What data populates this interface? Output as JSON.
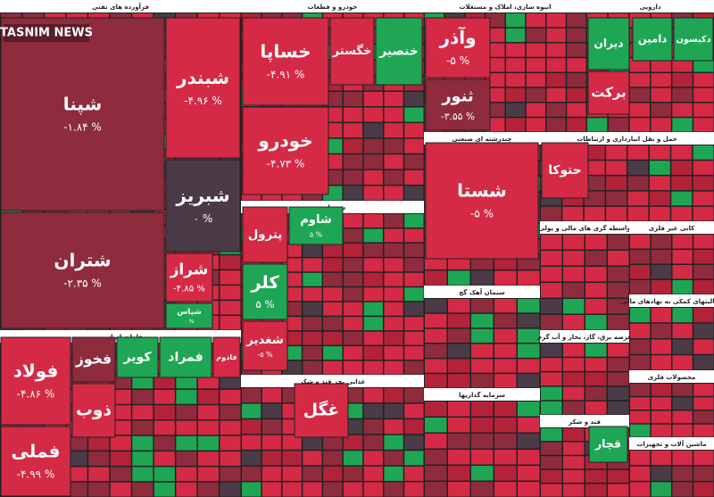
{
  "header": {
    "logo": "TASNIM NEWS",
    "title": "نقشه بازار"
  },
  "sectors": [
    {
      "title": "فرآورده های نفتی",
      "tiles": [
        {
          "name": "شپنا",
          "change": "-۱.۸۴ %"
        },
        {
          "name": "شتران",
          "change": "-۲.۳۵ %"
        },
        {
          "name": "شبندر",
          "change": "-۴.۹۶ %"
        },
        {
          "name": "شبریز",
          "change": "۰ %"
        },
        {
          "name": "شراز",
          "change": "-۴.۸۵ %"
        },
        {
          "name": "شپاس",
          "change": "۰ %"
        }
      ]
    },
    {
      "title": "خودرو و قطعات",
      "tiles": [
        {
          "name": "خساپا",
          "change": "-۴.۹۱ %"
        },
        {
          "name": "خودرو",
          "change": "-۴.۷۳ %"
        },
        {
          "name": "خگستر"
        },
        {
          "name": "خنصیر"
        }
      ]
    },
    {
      "title": "انبوه سازی، املاک و مستغلات",
      "tiles": [
        {
          "name": "وآذر",
          "change": "-۵ %"
        },
        {
          "name": "ثنور",
          "change": "-۳.۵۵ %"
        }
      ]
    },
    {
      "title": "دارویی",
      "tiles": [
        {
          "name": "دیران"
        },
        {
          "name": "برکت"
        },
        {
          "name": "دامین"
        },
        {
          "name": "دکیسون"
        }
      ]
    },
    {
      "title": "چندرشته ای صنعتی",
      "tiles": [
        {
          "name": "شستا",
          "change": "-۵ %"
        }
      ]
    },
    {
      "title": "حمل و نقل انبارداری و ارتباطات",
      "tiles": [
        {
          "name": "حتوکا"
        }
      ]
    },
    {
      "title": "واسطه گری های مالی و پولی",
      "tiles": []
    },
    {
      "title": "کانی غیر فلزی",
      "tiles": []
    },
    {
      "title": "شیمیایی",
      "tiles": [
        {
          "name": "پترول"
        },
        {
          "name": "شاوم",
          "change": "۵ %"
        },
        {
          "name": "کلر",
          "change": "۵ %"
        },
        {
          "name": "شغدیر",
          "change": "-۵ %"
        }
      ]
    },
    {
      "title": "فلزات اساسی",
      "tiles": [
        {
          "name": "فولاد",
          "change": "-۴.۸۶ %"
        },
        {
          "name": "فملی",
          "change": "-۴.۹۹ %"
        },
        {
          "name": "فخوز"
        },
        {
          "name": "کویر"
        },
        {
          "name": "فمراد"
        },
        {
          "name": "فاذوم"
        },
        {
          "name": "ذوب"
        }
      ]
    },
    {
      "title": "غذایی بجز قند و شکر",
      "tiles": [
        {
          "name": "غگل"
        }
      ]
    },
    {
      "title": "سیمان آهک گچ",
      "tiles": []
    },
    {
      "title": "سرمایه گذاریها",
      "tiles": []
    },
    {
      "title": "عرضه برق، گاز، بخار و آب گرم",
      "tiles": []
    },
    {
      "title": "قند و شکر",
      "tiles": [
        {
          "name": "قچار"
        }
      ]
    },
    {
      "title": "فعالیتهای کمکی به نهادهای مالی",
      "tiles": []
    },
    {
      "title": "محصولات فلزی",
      "tiles": []
    },
    {
      "title": "ماشین آلات و تجهیزات",
      "tiles": []
    }
  ]
}
